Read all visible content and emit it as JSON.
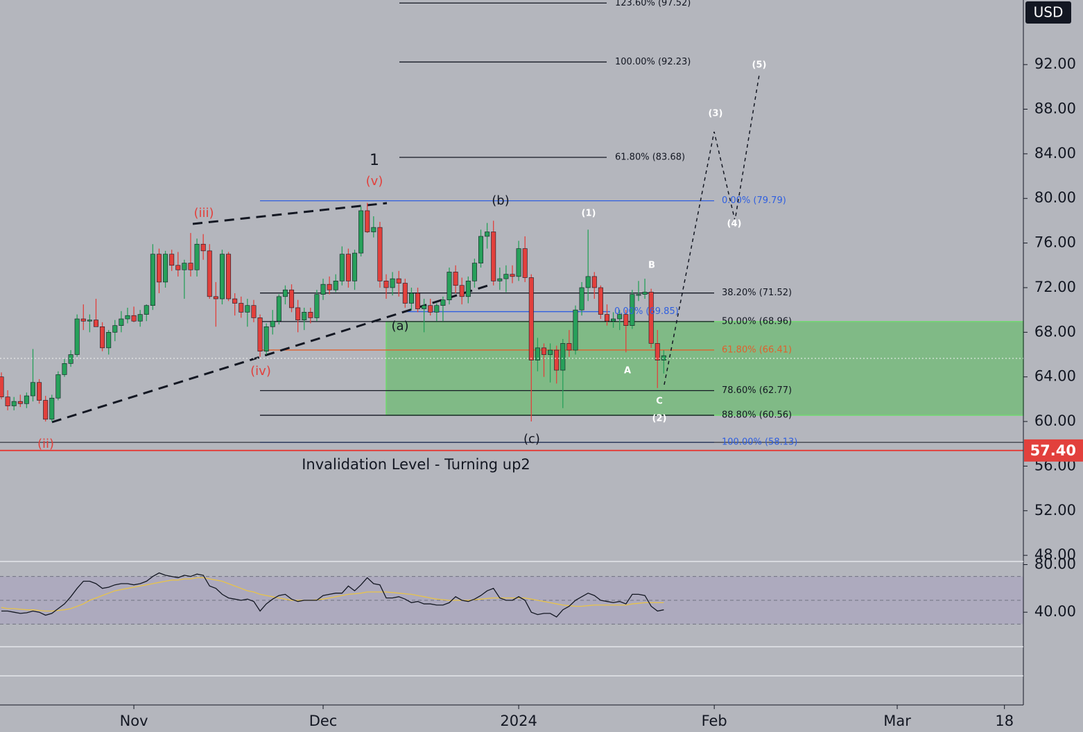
{
  "chart_data": {
    "type": "candlestick",
    "currency": "USD",
    "up_color": "#27a05a",
    "down_color": "#e2403c",
    "xlim": [
      -0.22,
      162
    ],
    "xticks": [
      {
        "value": 21,
        "label": "Nov"
      },
      {
        "value": 51,
        "label": "Dec"
      },
      {
        "value": 82,
        "label": "2024"
      },
      {
        "value": 113,
        "label": "Feb"
      },
      {
        "value": 142,
        "label": "Mar"
      },
      {
        "value": 159,
        "label": "18"
      }
    ],
    "ylim": [
      47.76,
      97.79
    ],
    "yticks": [
      {
        "value": 92,
        "label": "92.00"
      },
      {
        "value": 88,
        "label": "88.00"
      },
      {
        "value": 84,
        "label": "84.00"
      },
      {
        "value": 80,
        "label": "80.00"
      },
      {
        "value": 76,
        "label": "76.00"
      },
      {
        "value": 72,
        "label": "72.00"
      },
      {
        "value": 68,
        "label": "68.00"
      },
      {
        "value": 64,
        "label": "64.00"
      },
      {
        "value": 60,
        "label": "60.00"
      },
      {
        "value": 56,
        "label": "56.00"
      },
      {
        "value": 52,
        "label": "52.00"
      },
      {
        "value": 48,
        "label": "48.00"
      }
    ],
    "open": [
      64.0,
      62.2,
      61.4,
      61.8,
      61.6,
      62.3,
      63.5,
      61.9,
      60.2,
      62.1,
      64.2,
      65.2,
      66.0,
      69.2,
      69.0,
      69.1,
      68.5,
      66.6,
      68.0,
      68.6,
      69.2,
      69.5,
      69.0,
      69.6,
      70.4,
      75.0,
      72.5,
      75.0,
      74.0,
      73.6,
      74.2,
      73.6,
      75.9,
      75.3,
      71.2,
      71.0,
      75.0,
      71.0,
      70.6,
      69.8,
      70.4,
      69.3,
      66.3,
      68.5,
      69.0,
      71.2,
      71.8,
      70.2,
      69.1,
      69.8,
      69.3,
      71.4,
      72.3,
      71.8,
      72.6,
      75.0,
      72.6,
      75.1,
      78.9,
      77.0,
      77.4,
      72.6,
      72.0,
      72.8,
      72.4,
      70.6,
      71.5,
      70.1,
      70.4,
      69.8,
      70.4,
      70.9,
      73.4,
      72.2,
      71.2,
      72.6,
      74.2,
      76.6,
      77.0,
      72.6,
      72.8,
      73.2,
      73.0,
      75.5,
      72.9,
      65.5,
      66.6,
      66.0,
      66.4,
      64.6,
      67.0,
      66.4,
      70.0,
      72.0,
      73.0,
      72.0,
      69.6,
      69.0,
      69.2,
      69.6,
      68.6,
      71.4,
      71.4,
      71.6,
      67.0,
      65.5
    ],
    "high": [
      64.4,
      62.8,
      62.2,
      62.4,
      62.6,
      66.5,
      63.8,
      62.3,
      62.4,
      64.5,
      65.6,
      66.4,
      69.6,
      70.5,
      69.6,
      71.0,
      68.9,
      68.2,
      69.1,
      69.9,
      70.2,
      70.3,
      70.0,
      70.5,
      75.9,
      75.5,
      75.3,
      75.4,
      75.2,
      74.5,
      76.9,
      76.4,
      76.8,
      75.9,
      72.5,
      75.4,
      75.2,
      71.5,
      71.2,
      71.0,
      70.9,
      69.6,
      68.8,
      70.0,
      71.4,
      72.2,
      72.3,
      70.9,
      70.2,
      70.2,
      71.8,
      72.8,
      73.0,
      73.2,
      75.7,
      75.5,
      75.4,
      79.3,
      79.6,
      78.4,
      77.9,
      73.2,
      73.4,
      73.5,
      72.8,
      72.0,
      72.0,
      71.0,
      71.0,
      70.6,
      71.2,
      73.8,
      74.0,
      72.9,
      73.0,
      74.6,
      77.2,
      77.8,
      78.0,
      73.8,
      74.0,
      74.0,
      76.2,
      76.6,
      73.2,
      67.5,
      67.0,
      67.0,
      66.8,
      67.4,
      68.2,
      70.4,
      72.5,
      77.2,
      73.4,
      72.2,
      70.5,
      69.8,
      70.0,
      70.0,
      71.8,
      72.6,
      72.8,
      71.9,
      68.2,
      66.4
    ],
    "low": [
      62.0,
      61.0,
      61.0,
      61.3,
      61.2,
      61.8,
      61.6,
      60.0,
      60.0,
      61.9,
      64.0,
      64.9,
      65.8,
      68.2,
      68.0,
      68.5,
      66.3,
      66.0,
      67.2,
      68.0,
      68.8,
      68.9,
      68.5,
      69.0,
      70.0,
      71.5,
      72.0,
      73.5,
      73.0,
      71.0,
      73.0,
      73.0,
      74.5,
      71.0,
      68.5,
      70.5,
      70.8,
      69.5,
      69.3,
      68.5,
      68.9,
      65.8,
      66.0,
      67.8,
      68.7,
      70.5,
      69.8,
      68.0,
      68.2,
      68.8,
      69.0,
      70.9,
      71.4,
      71.6,
      72.2,
      72.0,
      71.8,
      74.8,
      76.9,
      76.5,
      72.0,
      71.0,
      71.3,
      71.2,
      70.2,
      70.0,
      69.8,
      68.0,
      69.5,
      69.0,
      69.0,
      70.5,
      71.5,
      70.5,
      70.6,
      72.0,
      73.8,
      75.5,
      72.2,
      71.8,
      71.6,
      72.4,
      72.6,
      72.5,
      60.0,
      64.5,
      64.0,
      63.5,
      63.4,
      61.2,
      65.8,
      66.0,
      69.5,
      70.8,
      71.0,
      69.2,
      68.6,
      68.4,
      68.2,
      66.2,
      68.3,
      70.8,
      71.0,
      66.6,
      63.0,
      64.3
    ],
    "close": [
      62.2,
      61.4,
      61.8,
      61.6,
      62.3,
      63.5,
      61.9,
      60.2,
      62.1,
      64.2,
      65.2,
      66.0,
      69.2,
      69.0,
      69.1,
      68.5,
      66.6,
      68.0,
      68.6,
      69.2,
      69.5,
      69.0,
      69.6,
      70.4,
      75.0,
      72.5,
      75.0,
      74.0,
      73.6,
      74.2,
      73.6,
      75.9,
      75.3,
      71.2,
      71.0,
      75.0,
      71.0,
      70.6,
      69.8,
      70.4,
      69.3,
      66.3,
      68.5,
      69.0,
      71.2,
      71.8,
      70.2,
      69.1,
      69.8,
      69.3,
      71.4,
      72.3,
      71.8,
      72.6,
      75.0,
      72.6,
      75.1,
      78.9,
      77.0,
      77.4,
      72.6,
      72.0,
      72.8,
      72.4,
      70.6,
      71.5,
      70.1,
      70.4,
      69.8,
      70.4,
      70.9,
      73.4,
      72.2,
      71.2,
      72.6,
      74.2,
      76.6,
      77.0,
      72.6,
      72.8,
      73.2,
      73.0,
      75.5,
      72.9,
      65.5,
      66.6,
      66.0,
      66.4,
      64.6,
      67.0,
      66.4,
      70.0,
      72.0,
      73.0,
      72.0,
      69.6,
      69.0,
      69.2,
      69.6,
      68.6,
      71.4,
      71.4,
      71.6,
      67.0,
      65.5,
      65.9
    ],
    "fib_levels": [
      {
        "label": "123.60% (97.52)",
        "value": 97.52,
        "color": "#131722"
      },
      {
        "label": "100.00% (92.23)",
        "value": 92.23,
        "color": "#131722"
      },
      {
        "label": "61.80% (83.68)",
        "value": 83.68,
        "color": "#131722"
      },
      {
        "label": "0.00% (79.79)",
        "value": 79.79,
        "color": "#2f5fe0"
      },
      {
        "label": "38.20% (71.52)",
        "value": 71.52,
        "color": "#131722"
      },
      {
        "label": "0.00% (69.85)",
        "value": 69.85,
        "color": "#2f5fe0"
      },
      {
        "label": "50.00% (68.96)",
        "value": 68.96,
        "color": "#131722"
      },
      {
        "label": "61.80% (66.41)",
        "value": 66.41,
        "color": "#e0602c"
      },
      {
        "label": "78.60% (62.77)",
        "value": 62.77,
        "color": "#131722"
      },
      {
        "label": "88.80% (60.56)",
        "value": 60.56,
        "color": "#131722"
      },
      {
        "label": "100.00% (58.13)",
        "value": 58.13,
        "color": "#2f5fe0"
      }
    ],
    "wave_labels": [
      {
        "text": "1",
        "color": "#131722"
      },
      {
        "text": "(v)",
        "color": "#e2403c"
      },
      {
        "text": "(iii)",
        "color": "#e2403c"
      },
      {
        "text": "(iv)",
        "color": "#e2403c"
      },
      {
        "text": "(ii)",
        "color": "#e2403c"
      },
      {
        "text": "(b)",
        "color": "#131722"
      },
      {
        "text": "(a)",
        "color": "#131722"
      },
      {
        "text": "(c)",
        "color": "#131722"
      },
      {
        "text": "(1)",
        "color": "#ffffff"
      },
      {
        "text": "(2)",
        "color": "#ffffff"
      },
      {
        "text": "(3)",
        "color": "#ffffff"
      },
      {
        "text": "(4)",
        "color": "#ffffff"
      },
      {
        "text": "(5)",
        "color": "#ffffff"
      },
      {
        "text": "A",
        "color": "#ffffff"
      },
      {
        "text": "B",
        "color": "#ffffff"
      },
      {
        "text": "C",
        "color": "#ffffff"
      }
    ],
    "invalidation_text": "Invalidation Level - Turning up2",
    "price_tag": {
      "value": 57.4,
      "label": "57.40",
      "color": "#e2403c"
    },
    "rsi": [
      41,
      41,
      40,
      39,
      39.5,
      41,
      40,
      37.5,
      39,
      43,
      47,
      53,
      60,
      66,
      66,
      64,
      60,
      61,
      63,
      64,
      64,
      63,
      64,
      66,
      70,
      73,
      71,
      70,
      69,
      71,
      70,
      72,
      71,
      62,
      60,
      55,
      52,
      51,
      50,
      51,
      49,
      41,
      47,
      51,
      54,
      55,
      51,
      49,
      50,
      50,
      50,
      54,
      55,
      56,
      56,
      62,
      58,
      63,
      69,
      64,
      63,
      52,
      52,
      53,
      51,
      48,
      49,
      47,
      47,
      46,
      46,
      48,
      53,
      50,
      49,
      51,
      54,
      58,
      60,
      52,
      50,
      50,
      53,
      50,
      40,
      38,
      39,
      39,
      36,
      42,
      45,
      50,
      53,
      56,
      54,
      50,
      49,
      48,
      49,
      47,
      55,
      55,
      54,
      45,
      41,
      42
    ],
    "rsi_ma": [
      44,
      43,
      43,
      42.5,
      42,
      42,
      41.5,
      41,
      41,
      41.5,
      42,
      43,
      45,
      47,
      50,
      52,
      54,
      56,
      58,
      59,
      60,
      61,
      62,
      63,
      64,
      65,
      66,
      67,
      67,
      68,
      68,
      69,
      69,
      68,
      67,
      66,
      64,
      62,
      60,
      58,
      57,
      55,
      54,
      53,
      52,
      51,
      50,
      50,
      50,
      50,
      50.5,
      51,
      52,
      53,
      54,
      55,
      55.5,
      56,
      57,
      57,
      57,
      57,
      56.5,
      56,
      55.5,
      55,
      54,
      53,
      52,
      51,
      50.5,
      50,
      50,
      50,
      50,
      50.5,
      51,
      51.5,
      52,
      52,
      52,
      52,
      52,
      52,
      51,
      50,
      49,
      48,
      47,
      46,
      45.5,
      45,
      45,
      45.5,
      46,
      46,
      46,
      46,
      46,
      46,
      47,
      47.5,
      48,
      48,
      48,
      48
    ],
    "rsi_ylim": [
      11,
      82.6
    ],
    "rsi_levels": [
      70,
      50,
      30
    ],
    "rsi_yticks": [
      {
        "value": 80,
        "label": "80.00"
      },
      {
        "value": 40,
        "label": "40.00"
      }
    ]
  }
}
